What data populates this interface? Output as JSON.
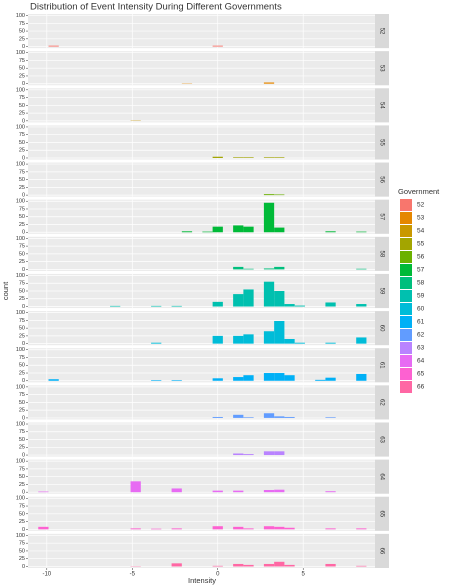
{
  "chart_data": {
    "type": "histogram",
    "title": "Distribution of Event Intensity During Different Governments",
    "x_label": "Intensity",
    "y_label": "count",
    "legend_title": "Government",
    "bins": [
      -10.5,
      -9.9,
      -9.3,
      -8.7,
      -8.1,
      -7.5,
      -6.9,
      -6.3,
      -5.7,
      -5.1,
      -4.5,
      -3.9,
      -3.3,
      -2.7,
      -2.1,
      -1.5,
      -0.9,
      -0.3,
      0.3,
      0.9,
      1.5,
      2.1,
      2.7,
      3.3,
      3.9,
      4.5,
      5.1,
      5.7,
      6.3,
      6.9,
      7.5,
      8.1,
      8.7,
      9.3
    ],
    "xlim": [
      -11.1,
      9.2
    ],
    "xticks": [
      -10,
      -5,
      0,
      5
    ],
    "ylim": [
      -5,
      105
    ],
    "yticks": [
      0,
      25,
      50,
      75,
      100
    ],
    "grid": true,
    "series": [
      {
        "name": "52",
        "color": "#F8766D",
        "values": [
          0,
          3,
          0,
          0,
          0,
          0,
          0,
          0,
          0,
          0,
          0,
          0,
          0,
          0,
          0,
          0,
          0,
          3,
          0,
          0,
          0,
          0,
          0,
          0,
          0,
          0,
          0,
          0,
          0,
          0,
          0,
          0,
          0
        ]
      },
      {
        "name": "53",
        "color": "#E58700",
        "values": [
          0,
          0,
          0,
          0,
          0,
          0,
          0,
          0,
          0,
          0,
          0,
          0,
          0,
          0,
          1,
          0,
          0,
          0,
          0,
          0,
          0,
          0,
          4,
          0,
          0,
          0,
          0,
          0,
          0,
          0,
          0,
          0,
          0
        ]
      },
      {
        "name": "54",
        "color": "#C99800",
        "values": [
          0,
          0,
          0,
          0,
          0,
          0,
          0,
          0,
          0,
          1,
          0,
          0,
          0,
          0,
          0,
          0,
          0,
          0,
          0,
          0,
          0,
          0,
          0,
          0,
          0,
          0,
          0,
          0,
          0,
          0,
          0,
          0,
          0
        ]
      },
      {
        "name": "55",
        "color": "#A3A500",
        "values": [
          0,
          0,
          0,
          0,
          0,
          0,
          0,
          0,
          0,
          0,
          0,
          0,
          0,
          0,
          0,
          0,
          0,
          4,
          0,
          2,
          2,
          0,
          2,
          2,
          0,
          0,
          0,
          0,
          0,
          0,
          0,
          0,
          0
        ]
      },
      {
        "name": "56",
        "color": "#6BB100",
        "values": [
          0,
          0,
          0,
          0,
          0,
          0,
          0,
          0,
          0,
          0,
          0,
          0,
          0,
          0,
          0,
          0,
          0,
          0,
          0,
          0,
          0,
          0,
          3,
          2,
          0,
          0,
          0,
          0,
          0,
          0,
          0,
          0,
          0
        ]
      },
      {
        "name": "57",
        "color": "#00BA38",
        "values": [
          0,
          0,
          0,
          0,
          0,
          0,
          0,
          0,
          0,
          0,
          0,
          0,
          0,
          0,
          3,
          0,
          2,
          18,
          0,
          22,
          18,
          0,
          95,
          15,
          0,
          0,
          0,
          0,
          3,
          0,
          0,
          2,
          0
        ]
      },
      {
        "name": "58",
        "color": "#00BF7D",
        "values": [
          0,
          0,
          0,
          0,
          0,
          0,
          0,
          0,
          0,
          0,
          0,
          0,
          0,
          0,
          0,
          0,
          0,
          0,
          0,
          8,
          2,
          0,
          3,
          8,
          0,
          0,
          0,
          0,
          0,
          0,
          0,
          2,
          0
        ]
      },
      {
        "name": "59",
        "color": "#00C0AF",
        "values": [
          0,
          0,
          0,
          0,
          0,
          0,
          0,
          2,
          0,
          0,
          0,
          2,
          0,
          2,
          0,
          0,
          0,
          15,
          0,
          40,
          55,
          0,
          80,
          50,
          8,
          3,
          0,
          0,
          13,
          0,
          0,
          8,
          0
        ]
      },
      {
        "name": "60",
        "color": "#00BCD8",
        "values": [
          0,
          0,
          0,
          0,
          0,
          0,
          0,
          0,
          0,
          0,
          0,
          3,
          0,
          0,
          0,
          0,
          0,
          25,
          0,
          25,
          30,
          0,
          40,
          73,
          15,
          3,
          0,
          0,
          3,
          0,
          0,
          20,
          0
        ]
      },
      {
        "name": "61",
        "color": "#00B0F6",
        "values": [
          0,
          5,
          0,
          0,
          0,
          0,
          0,
          0,
          0,
          0,
          0,
          2,
          0,
          2,
          0,
          0,
          0,
          8,
          0,
          12,
          18,
          0,
          25,
          25,
          18,
          0,
          0,
          3,
          10,
          0,
          0,
          22,
          0
        ]
      },
      {
        "name": "62",
        "color": "#619CFF",
        "values": [
          0,
          0,
          0,
          0,
          0,
          0,
          0,
          0,
          0,
          0,
          0,
          0,
          0,
          0,
          0,
          0,
          0,
          3,
          0,
          10,
          2,
          0,
          15,
          5,
          3,
          0,
          0,
          0,
          2,
          0,
          0,
          0,
          0
        ]
      },
      {
        "name": "63",
        "color": "#B983FF",
        "values": [
          0,
          0,
          0,
          0,
          0,
          0,
          0,
          0,
          0,
          0,
          0,
          0,
          0,
          0,
          0,
          0,
          0,
          0,
          0,
          5,
          3,
          0,
          12,
          12,
          0,
          0,
          0,
          0,
          0,
          0,
          0,
          0,
          0
        ]
      },
      {
        "name": "64",
        "color": "#E76BF3",
        "values": [
          2,
          0,
          0,
          0,
          0,
          0,
          0,
          0,
          0,
          35,
          0,
          0,
          0,
          12,
          0,
          0,
          0,
          5,
          0,
          5,
          0,
          0,
          7,
          8,
          0,
          0,
          0,
          0,
          3,
          0,
          0,
          0,
          0
        ]
      },
      {
        "name": "65",
        "color": "#FD61D1",
        "values": [
          8,
          0,
          0,
          0,
          0,
          0,
          0,
          0,
          0,
          3,
          0,
          2,
          0,
          3,
          0,
          0,
          0,
          10,
          0,
          8,
          3,
          0,
          10,
          8,
          5,
          0,
          0,
          0,
          3,
          0,
          0,
          3,
          0
        ]
      },
      {
        "name": "66",
        "color": "#FF67A4",
        "values": [
          0,
          0,
          0,
          0,
          0,
          0,
          0,
          0,
          0,
          1,
          0,
          0,
          0,
          10,
          0,
          0,
          0,
          2,
          0,
          8,
          5,
          0,
          8,
          15,
          5,
          0,
          0,
          0,
          8,
          0,
          0,
          2,
          0
        ]
      }
    ]
  }
}
